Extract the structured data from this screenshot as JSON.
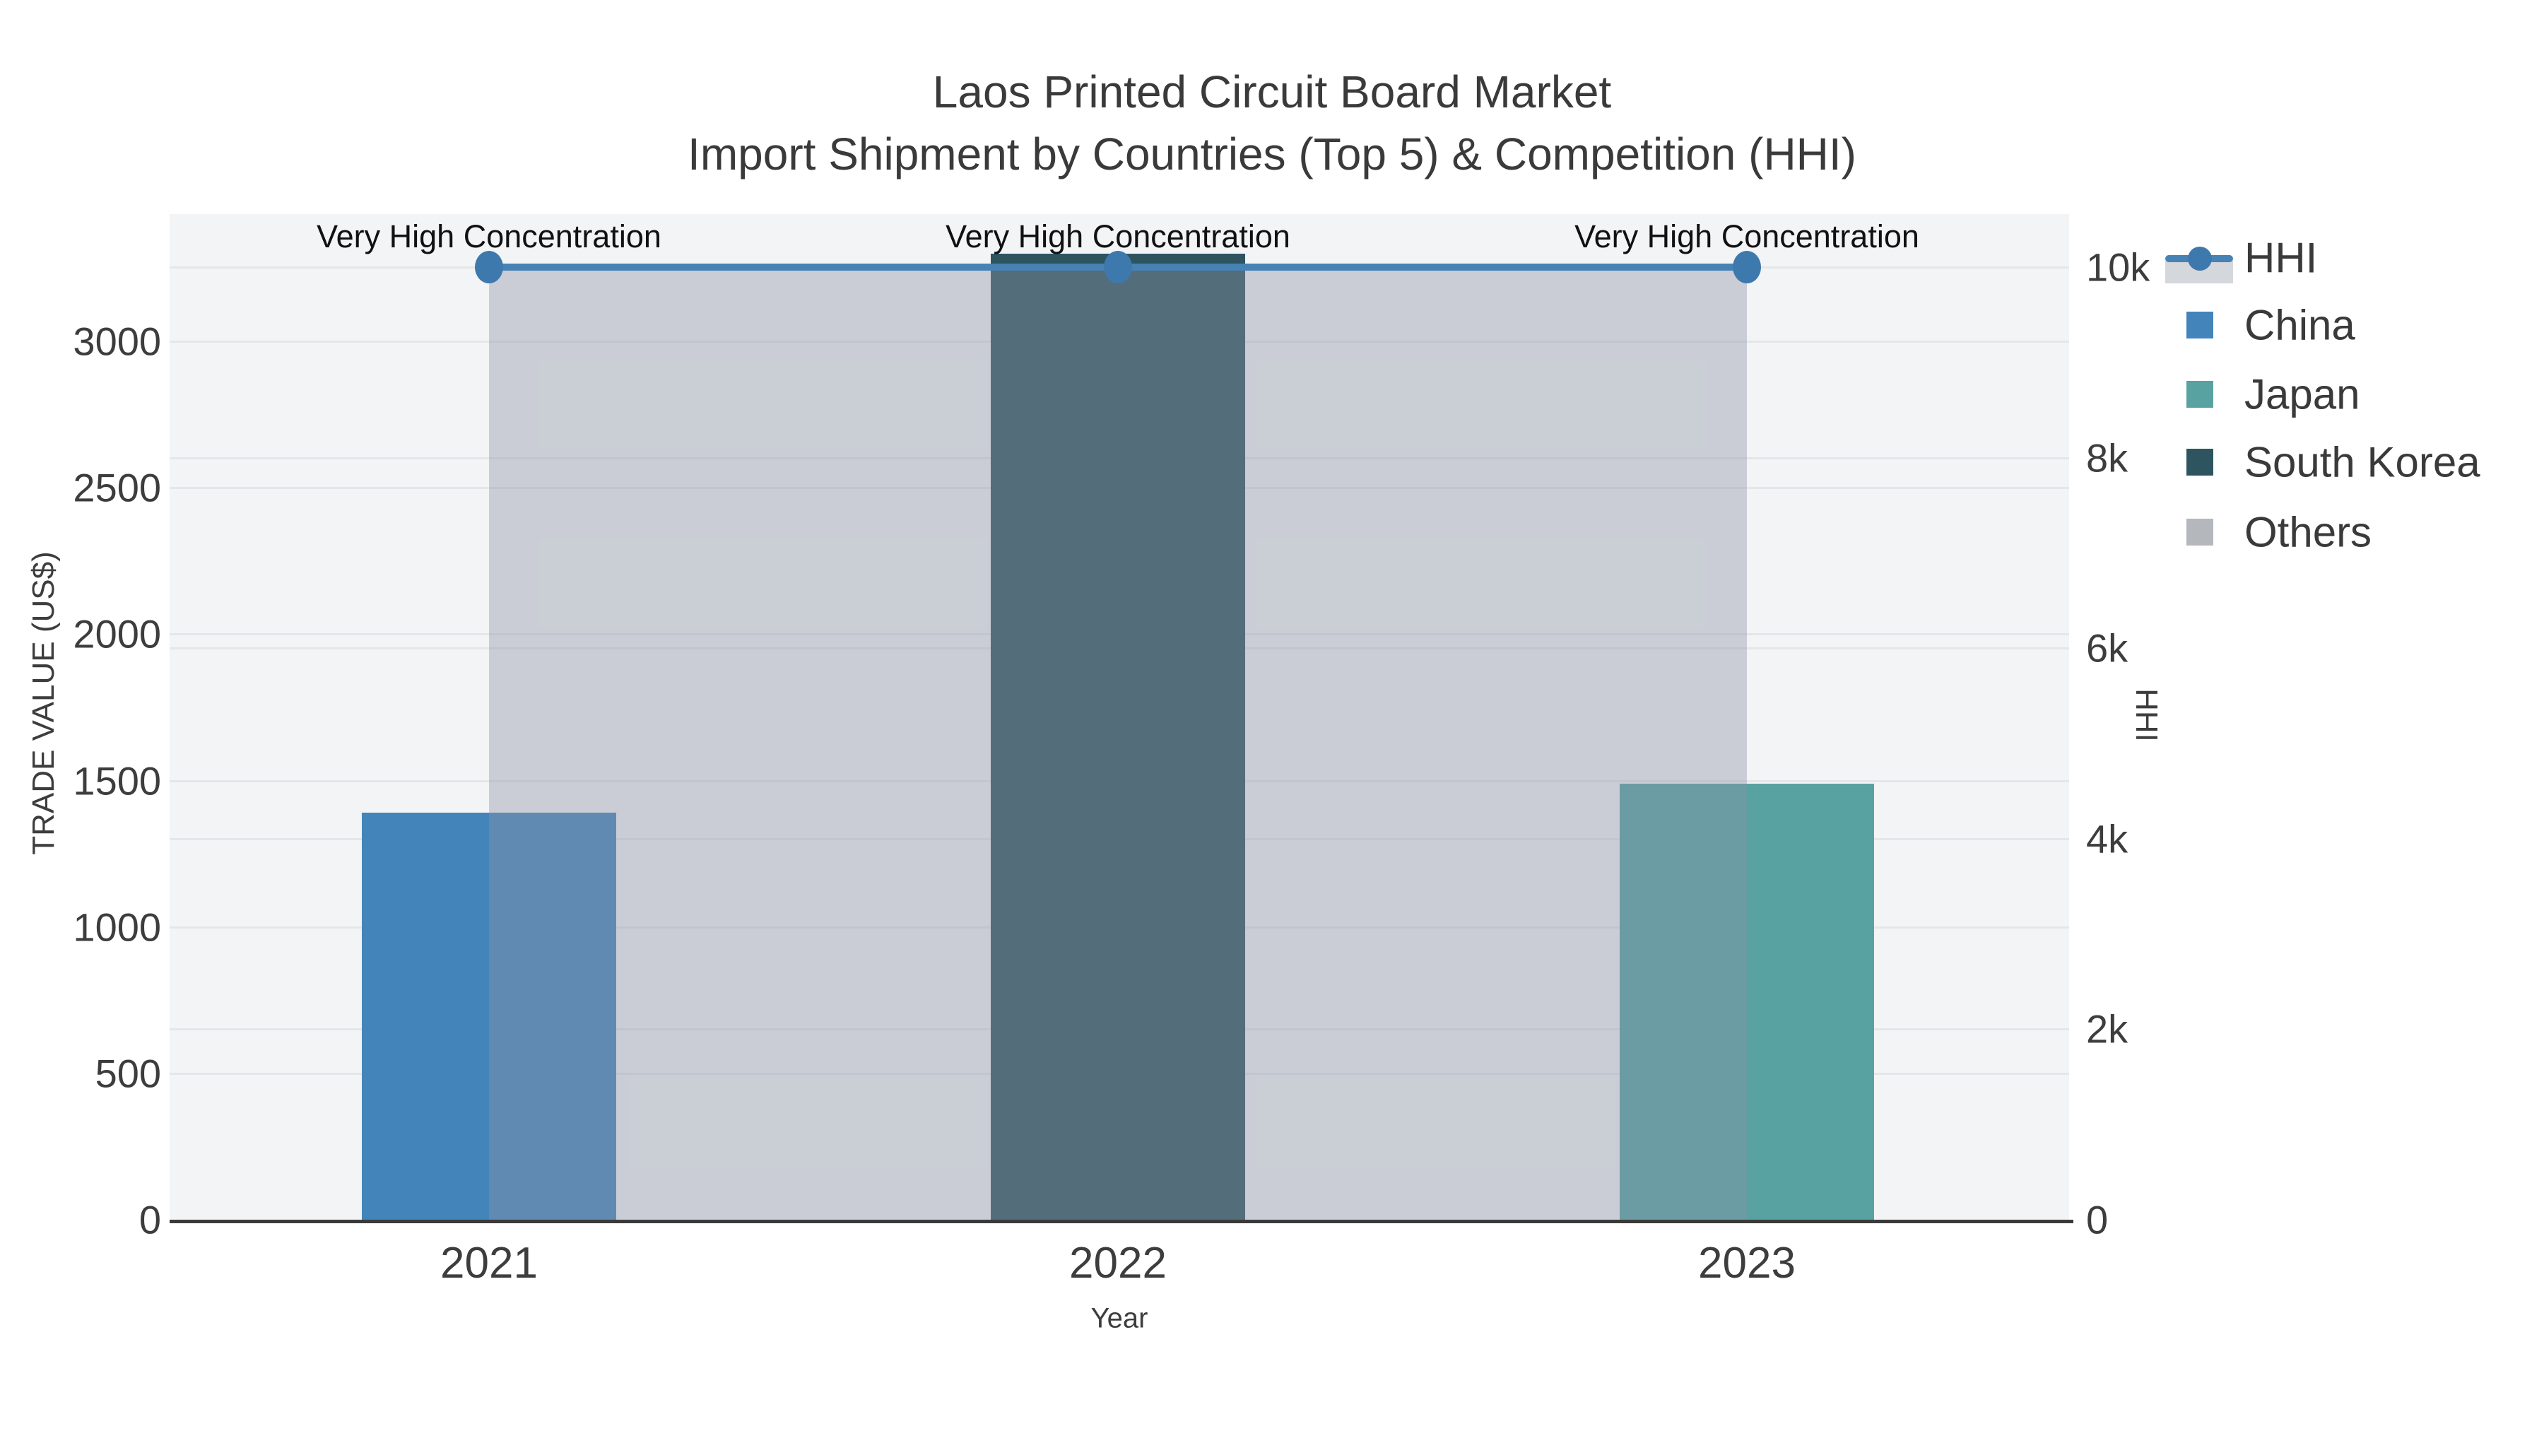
{
  "title": {
    "line1": "Laos Printed Circuit Board Market",
    "line2": "Import Shipment by Countries (Top 5) & Competition (HHI)"
  },
  "axes": {
    "x": {
      "title": "Year",
      "ticks": [
        "2021",
        "2022",
        "2023"
      ]
    },
    "y_left": {
      "title": "TRADE VALUE (US$)",
      "ticks": [
        "0",
        "500",
        "1000",
        "1500",
        "2000",
        "2500",
        "3000"
      ],
      "tick_values": [
        0,
        500,
        1000,
        1500,
        2000,
        2500,
        3000
      ]
    },
    "y_right": {
      "title": "HHI",
      "ticks": [
        "0",
        "2k",
        "4k",
        "6k",
        "8k",
        "10k"
      ],
      "tick_values": [
        0,
        2000,
        4000,
        6000,
        8000,
        10000
      ]
    }
  },
  "legend": {
    "items": [
      {
        "label": "HHI",
        "type": "line-area",
        "color": "#4682b4"
      },
      {
        "label": "China",
        "type": "square",
        "color": "#4384bb"
      },
      {
        "label": "Japan",
        "type": "square",
        "color": "#58a2a2"
      },
      {
        "label": "South Korea",
        "type": "square",
        "color": "#2e5460"
      },
      {
        "label": "Others",
        "type": "square",
        "color": "#b4b8bd"
      }
    ]
  },
  "annotations": [
    {
      "text": "Very High Concentration",
      "year": "2021"
    },
    {
      "text": "Very High Concentration",
      "year": "2022"
    },
    {
      "text": "Very High Concentration",
      "year": "2023"
    }
  ],
  "colors": {
    "plot_background": "#f3f4f5",
    "paper_background": "#ffffff",
    "gridline": "#e4e6e9",
    "axis_line": "#3a3a3a",
    "hhi_line": "#4682b4",
    "hhi_fill": "rgba(140,148,164,0.40)",
    "text": "#3d3d3d",
    "annotation_text": "#111111"
  },
  "chart_data": {
    "type": "bar+line",
    "title": "Laos Printed Circuit Board Market — Import Shipment by Countries (Top 5) & Competition (HHI)",
    "categories": [
      "2021",
      "2022",
      "2023"
    ],
    "xlabel": "Year",
    "ylabel_left": "TRADE VALUE (US$)",
    "ylabel_right": "HHI",
    "ylim_left": [
      0,
      3435
    ],
    "ylim_right": [
      0,
      10560
    ],
    "grid": true,
    "legend_position": "right",
    "series": [
      {
        "name": "China",
        "type": "bar",
        "axis": "left",
        "color": "#4384bb",
        "values": [
          1390,
          0,
          0
        ]
      },
      {
        "name": "Japan",
        "type": "bar",
        "axis": "left",
        "color": "#58a2a2",
        "values": [
          0,
          0,
          1490
        ]
      },
      {
        "name": "South Korea",
        "type": "bar",
        "axis": "left",
        "color": "#2e5460",
        "values": [
          0,
          3300,
          0
        ]
      },
      {
        "name": "Others",
        "type": "bar",
        "axis": "left",
        "color": "#b4b8bd",
        "values": [
          0,
          0,
          0
        ]
      },
      {
        "name": "HHI",
        "type": "line",
        "axis": "right",
        "color": "#4682b4",
        "fill_under_line": true,
        "values": [
          10000,
          10000,
          10000
        ],
        "annotation": "Very High Concentration"
      }
    ]
  }
}
